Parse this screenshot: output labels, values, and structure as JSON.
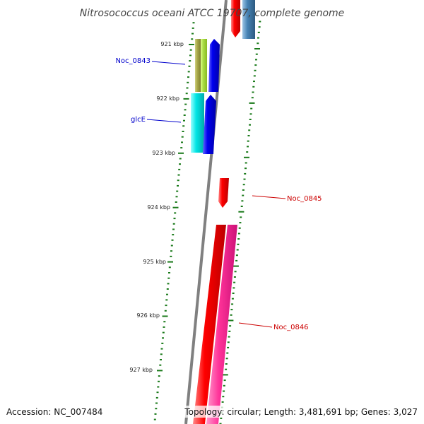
{
  "title": "Nitrosococcus oceani ATCC 19707, complete genome",
  "footer": {
    "accession": "Accession: NC_007484",
    "topology": "Topology: circular; Length: 3,481,691 bp; Genes: 3,027"
  },
  "ticks": [
    {
      "label": "921 kbp"
    },
    {
      "label": "922 kbp"
    },
    {
      "label": "923 kbp"
    },
    {
      "label": "924 kbp"
    },
    {
      "label": "925 kbp"
    },
    {
      "label": "926 kbp"
    },
    {
      "label": "927 kbp"
    }
  ],
  "gene_labels": {
    "noc_0843": "Noc_0843",
    "glce": "glcE",
    "noc_0845": "Noc_0845",
    "noc_0846": "Noc_0846"
  },
  "colors": {
    "backbone": "#808080",
    "tick": "#1a7a1a",
    "forward_label": "#0000cc",
    "reverse_label": "#cc0000",
    "red": "#ee0000",
    "blue": "#0000ee",
    "steelblue": "#4682b4",
    "olive": "#b0b050",
    "yellowgreen": "#aadd44",
    "cyan": "#00dddd",
    "pink": "#ff3399"
  }
}
